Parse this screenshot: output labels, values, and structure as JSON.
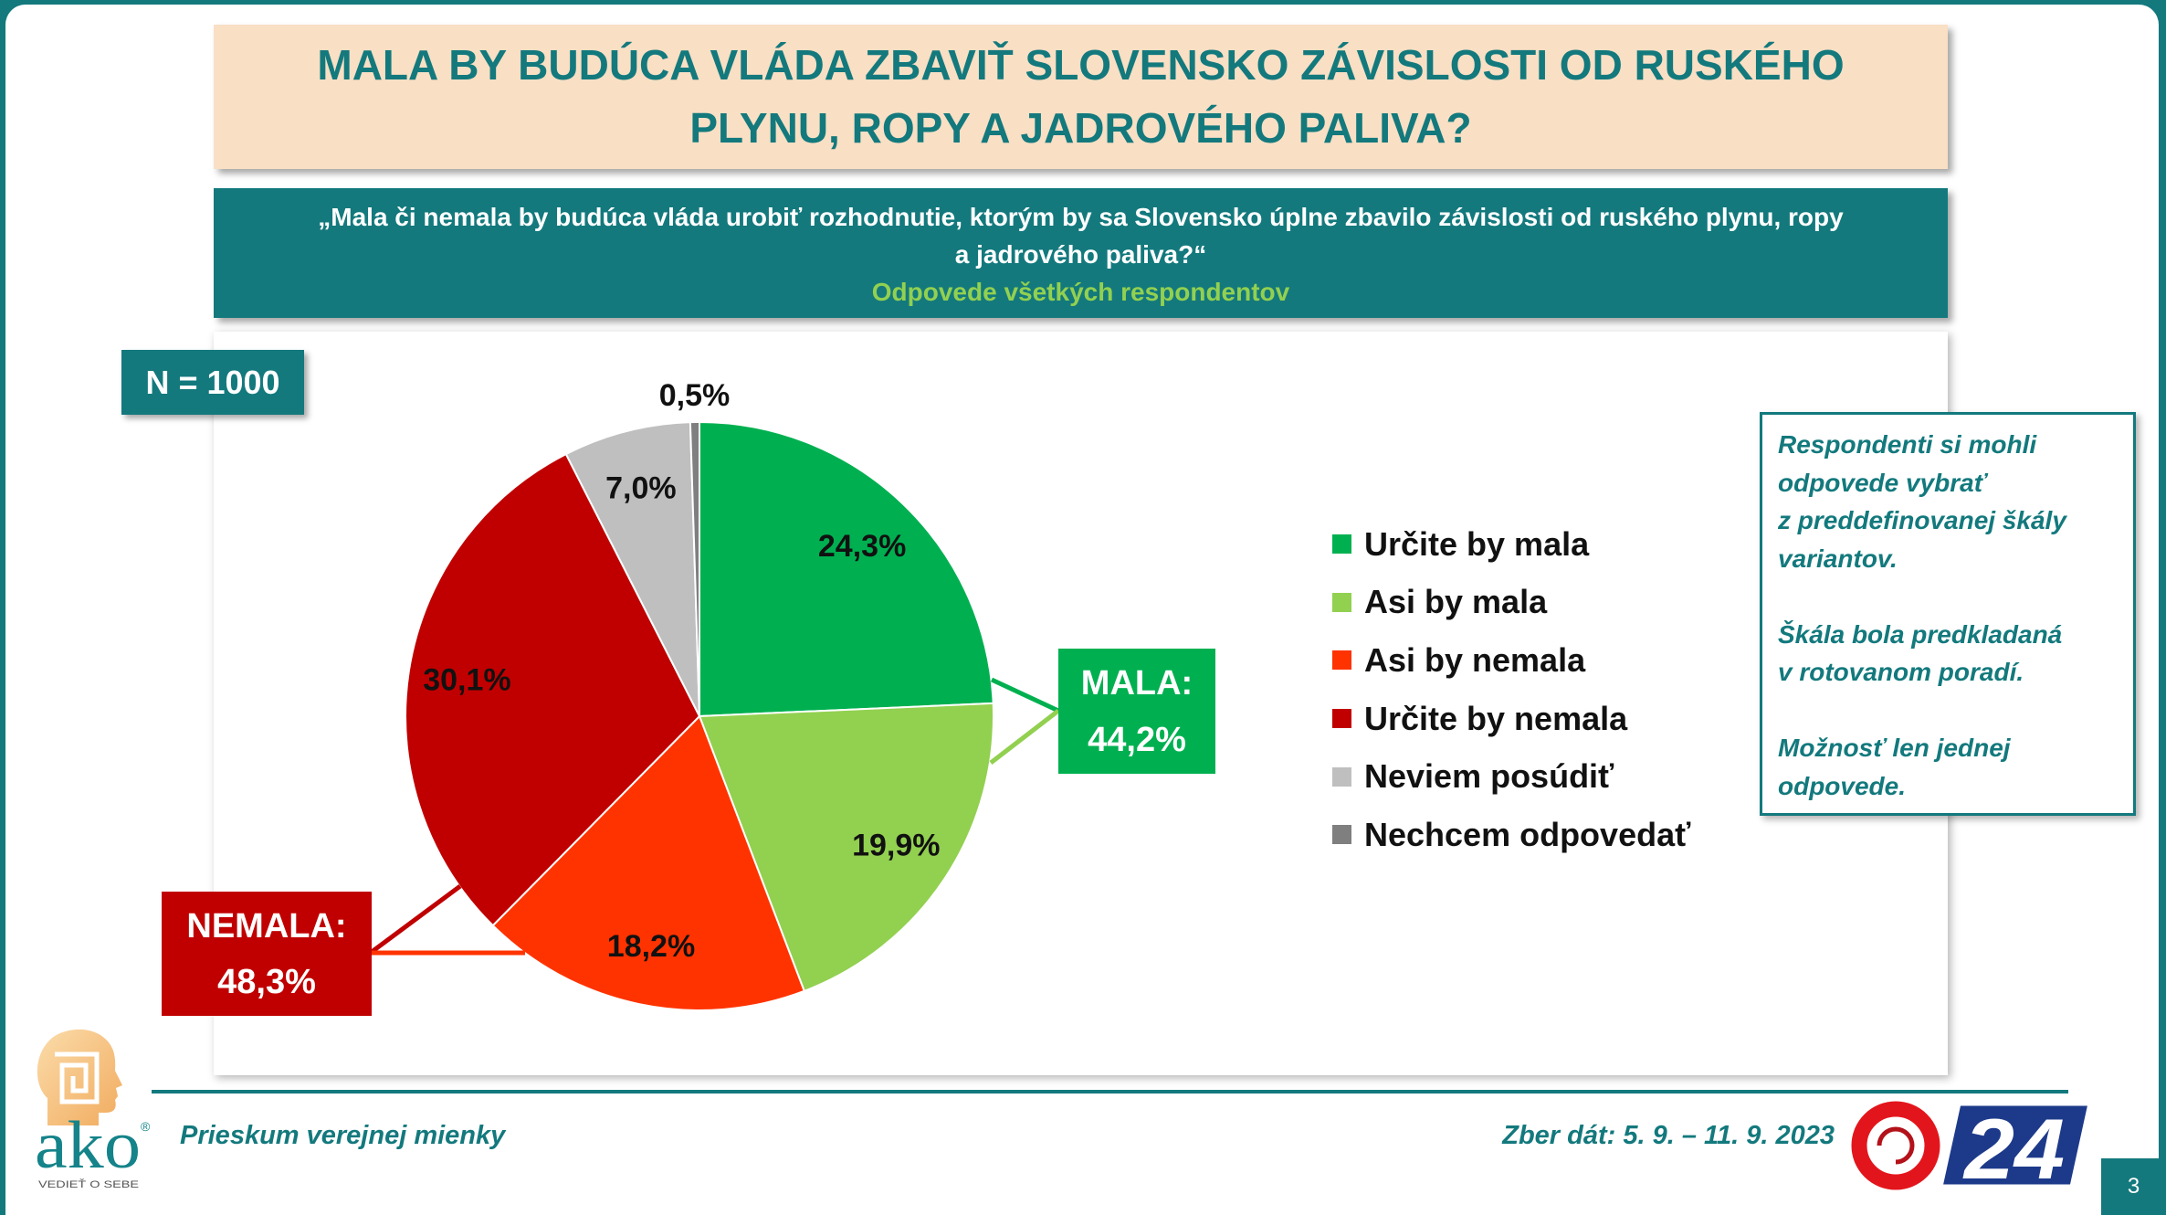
{
  "theme": {
    "teal": "#13797d",
    "title_background": "#f9dfc4",
    "subtitle_green": "#92d050"
  },
  "slide": {
    "title_lines": [
      "MALA BY BUDÚCA VLÁDA ZBAVIŤ SLOVENSKO ZÁVISLOSTI OD RUSKÉHO",
      "PLYNU, ROPY A JADROVÉHO PALIVA?"
    ],
    "question_lines": [
      "„Mala či nemala by budúca vláda urobiť rozhodnutie, ktorým by sa Slovensko úplne zbavilo závislosti od ruského plynu, ropy",
      "a jadrového paliva?“"
    ],
    "subtitle": "Odpovede všetkých respondentov",
    "sample_size": "N = 1000"
  },
  "chart_data": {
    "type": "pie",
    "categories": [
      "Určite by mala",
      "Asi by mala",
      "Asi by nemala",
      "Určite by nemala",
      "Neviem posúdiť",
      "Nechcem odpovedať"
    ],
    "values": [
      24.3,
      19.9,
      18.2,
      30.1,
      7.0,
      0.5
    ],
    "labels": [
      "24,3%",
      "19,9%",
      "18,2%",
      "30,1%",
      "7,0%",
      "0,5%"
    ],
    "colors": [
      "#00b050",
      "#92d050",
      "#ff3300",
      "#c00000",
      "#bfbfbf",
      "#7f7f7f"
    ],
    "legend_position": "right",
    "groups": [
      {
        "label": "MALA:",
        "value": 44.2,
        "value_label": "44,2%",
        "members": [
          0,
          1
        ],
        "color": "#00b050"
      },
      {
        "label": "NEMALA:",
        "value": 48.3,
        "value_label": "48,3%",
        "members": [
          2,
          3
        ],
        "color": "#c00000"
      }
    ]
  },
  "note": {
    "paragraphs": [
      [
        "Respondenti si mohli",
        "odpovede vybrať",
        "z preddefinovanej škály",
        "variantov."
      ],
      [
        "Škála bola predkladaná",
        "v rotovanom poradí."
      ],
      [
        "Možnosť len jednej",
        "odpovede."
      ]
    ]
  },
  "footer": {
    "survey_name": "Prieskum verejnej mienky",
    "collection_dates": "Zber dát: 5. 9. – 11. 9. 2023",
    "page_number": "3"
  },
  "logos": {
    "ako_wordmark": "ako",
    "ako_registered": "®",
    "ako_tagline": "VEDIEŤ O SEBE",
    "channel_number": "24"
  }
}
